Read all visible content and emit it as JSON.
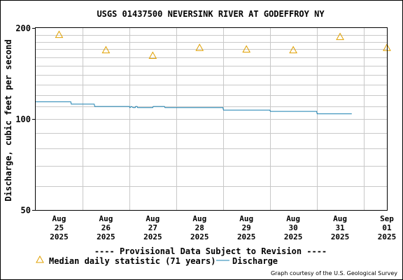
{
  "chart_data": {
    "type": "line",
    "title": "USGS 01437500 NEVERSINK RIVER AT GODEFFROY NY",
    "ylabel": "Discharge, cubic feet per second",
    "xlabel": "",
    "y_scale": "log",
    "ylim": [
      50,
      200
    ],
    "xlim": [
      "2025-08-25T00:00",
      "2025-09-01T12:00"
    ],
    "y_ticks": [
      {
        "value": 50,
        "label": "50"
      },
      {
        "value": 100,
        "label": "100"
      },
      {
        "value": 200,
        "label": "200"
      }
    ],
    "x_ticks": [
      {
        "date": "2025-08-25T12:00",
        "lines": [
          "Aug",
          "25",
          "2025"
        ]
      },
      {
        "date": "2025-08-26T12:00",
        "lines": [
          "Aug",
          "26",
          "2025"
        ]
      },
      {
        "date": "2025-08-27T12:00",
        "lines": [
          "Aug",
          "27",
          "2025"
        ]
      },
      {
        "date": "2025-08-28T12:00",
        "lines": [
          "Aug",
          "28",
          "2025"
        ]
      },
      {
        "date": "2025-08-29T12:00",
        "lines": [
          "Aug",
          "29",
          "2025"
        ]
      },
      {
        "date": "2025-08-30T12:00",
        "lines": [
          "Aug",
          "30",
          "2025"
        ]
      },
      {
        "date": "2025-08-31T12:00",
        "lines": [
          "Aug",
          "31",
          "2025"
        ]
      },
      {
        "date": "2025-09-01T12:00",
        "lines": [
          "Sep",
          "01",
          "2025"
        ]
      }
    ],
    "grid": true,
    "series": [
      {
        "name": "Median daily statistic (71 years)",
        "marker": "triangle",
        "color": "#e0a000",
        "points": [
          {
            "x": "2025-08-25T12:00",
            "y": 190
          },
          {
            "x": "2025-08-26T12:00",
            "y": 169
          },
          {
            "x": "2025-08-27T12:00",
            "y": 162
          },
          {
            "x": "2025-08-28T12:00",
            "y": 172
          },
          {
            "x": "2025-08-29T12:00",
            "y": 170
          },
          {
            "x": "2025-08-30T12:00",
            "y": 169
          },
          {
            "x": "2025-08-31T12:00",
            "y": 187
          },
          {
            "x": "2025-09-01T12:00",
            "y": 172
          }
        ]
      },
      {
        "name": "Discharge",
        "marker": "line",
        "color": "#1a80b0",
        "points": [
          {
            "x": "2025-08-25T00:00",
            "y": 114
          },
          {
            "x": "2025-08-25T18:00",
            "y": 114
          },
          {
            "x": "2025-08-25T18:15",
            "y": 112
          },
          {
            "x": "2025-08-26T06:00",
            "y": 112
          },
          {
            "x": "2025-08-26T06:15",
            "y": 110
          },
          {
            "x": "2025-08-27T00:00",
            "y": 110
          },
          {
            "x": "2025-08-27T00:15",
            "y": 109
          },
          {
            "x": "2025-08-27T01:00",
            "y": 110
          },
          {
            "x": "2025-08-27T02:00",
            "y": 109
          },
          {
            "x": "2025-08-27T03:00",
            "y": 109
          },
          {
            "x": "2025-08-27T03:15",
            "y": 110
          },
          {
            "x": "2025-08-27T04:00",
            "y": 110
          },
          {
            "x": "2025-08-27T04:15",
            "y": 109
          },
          {
            "x": "2025-08-27T12:00",
            "y": 109
          },
          {
            "x": "2025-08-27T12:15",
            "y": 110
          },
          {
            "x": "2025-08-27T18:00",
            "y": 110
          },
          {
            "x": "2025-08-27T18:15",
            "y": 109
          },
          {
            "x": "2025-08-28T12:00",
            "y": 109
          },
          {
            "x": "2025-08-29T00:00",
            "y": 109
          },
          {
            "x": "2025-08-29T00:15",
            "y": 107
          },
          {
            "x": "2025-08-29T18:00",
            "y": 107
          },
          {
            "x": "2025-08-30T00:00",
            "y": 107
          },
          {
            "x": "2025-08-30T00:15",
            "y": 106
          },
          {
            "x": "2025-08-31T00:00",
            "y": 106
          },
          {
            "x": "2025-08-31T00:15",
            "y": 104
          },
          {
            "x": "2025-08-31T18:00",
            "y": 104
          }
        ]
      }
    ],
    "legend": {
      "position": "bottom",
      "entries": [
        {
          "label": "Median daily statistic (71 years)",
          "marker": "triangle"
        },
        {
          "label": "Discharge",
          "marker": "line"
        }
      ]
    },
    "annotations": {
      "provisional": "---- Provisional Data Subject to Revision ----",
      "credit": "Graph courtesy of the U.S. Geological Survey"
    },
    "colors": {
      "provisional": "#e00000",
      "grid": "#c8c8c8",
      "axis": "#000000"
    }
  }
}
